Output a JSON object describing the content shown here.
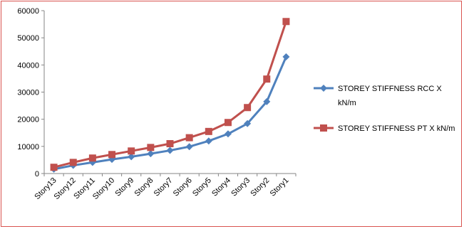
{
  "chart_data": {
    "type": "line",
    "categories": [
      "Story13",
      "Story12",
      "Story11",
      "Story10",
      "Story9",
      "Story8",
      "Story7",
      "Story6",
      "Story5",
      "Story4",
      "Story3",
      "Story2",
      "Story1"
    ],
    "ylim": [
      0,
      60000
    ],
    "yticks": [
      0,
      10000,
      20000,
      30000,
      40000,
      50000,
      60000
    ],
    "ytick_labels": [
      "0",
      "10000",
      "20000",
      "30000",
      "40000",
      "50000",
      "60000"
    ],
    "grid": false,
    "legend_position": "right",
    "series": [
      {
        "name": "STOREY STIFFNESS RCC X kN/m",
        "legend_lines": [
          "STOREY STIFFNESS  RCC X",
          "kN/m"
        ],
        "color": "#4f81bd",
        "marker": "diamond",
        "values": [
          1600,
          3000,
          4100,
          5200,
          6200,
          7300,
          8500,
          9900,
          12000,
          14600,
          18400,
          26500,
          43000
        ]
      },
      {
        "name": "STOREY STIFFNESS PT X kN/m",
        "legend_lines": [
          "STOREY STIFFNESS  PT  X kN/m"
        ],
        "color": "#c0504d",
        "marker": "square",
        "values": [
          2300,
          4100,
          5700,
          7000,
          8300,
          9600,
          11000,
          13200,
          15500,
          18800,
          24300,
          34800,
          56000
        ]
      }
    ]
  }
}
